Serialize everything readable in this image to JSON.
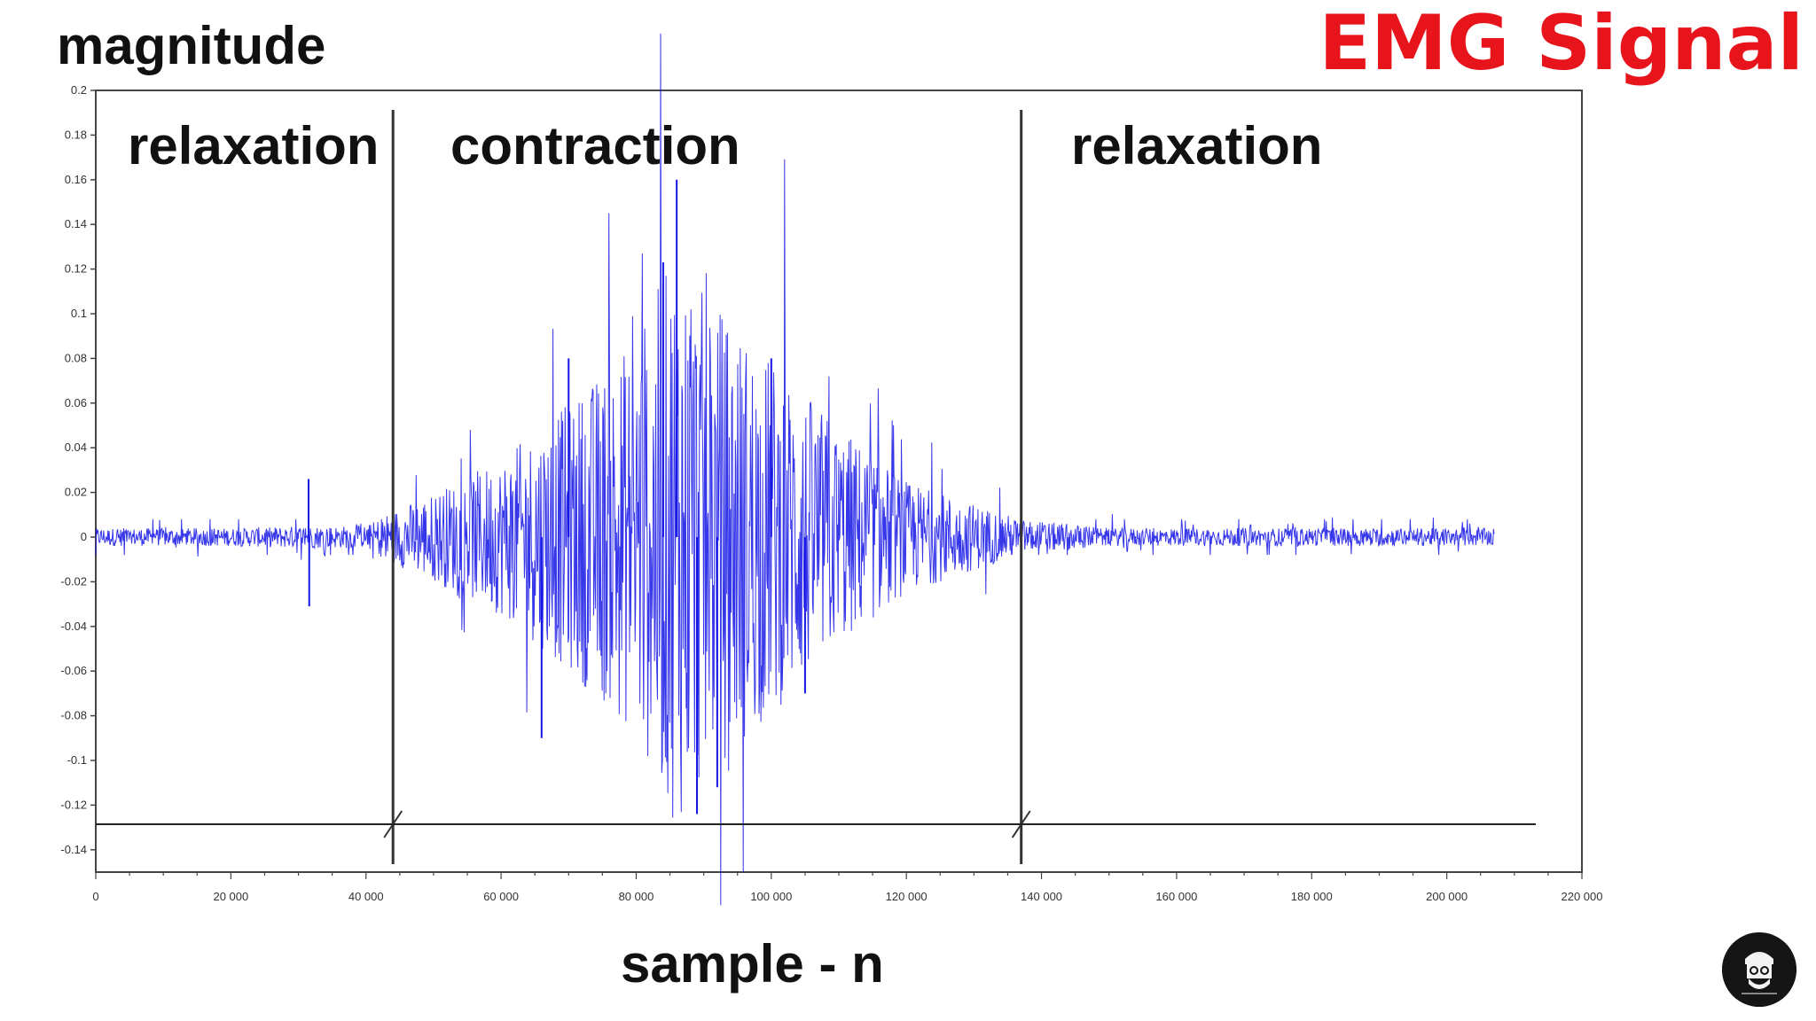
{
  "headline": {
    "text": "EMG Signal",
    "color": "#e8141c"
  },
  "chart_data": {
    "type": "line",
    "ylabel": "magnitude",
    "xlabel": "sample - n",
    "xlim": [
      0,
      220000
    ],
    "ylim": [
      -0.15,
      0.2
    ],
    "x_ticks": [
      {
        "value": 0,
        "label": "0"
      },
      {
        "value": 20000,
        "label": "20 000"
      },
      {
        "value": 40000,
        "label": "40 000"
      },
      {
        "value": 60000,
        "label": "60 000"
      },
      {
        "value": 80000,
        "label": "80 000"
      },
      {
        "value": 100000,
        "label": "100 000"
      },
      {
        "value": 120000,
        "label": "120 000"
      },
      {
        "value": 140000,
        "label": "140 000"
      },
      {
        "value": 160000,
        "label": "160 000"
      },
      {
        "value": 180000,
        "label": "180 000"
      },
      {
        "value": 200000,
        "label": "200 000"
      },
      {
        "value": 220000,
        "label": "220 000"
      }
    ],
    "y_ticks": [
      {
        "value": 0.2,
        "label": "0.2"
      },
      {
        "value": 0.18,
        "label": "0.18"
      },
      {
        "value": 0.16,
        "label": "0.16"
      },
      {
        "value": 0.14,
        "label": "0.14"
      },
      {
        "value": 0.12,
        "label": "0.12"
      },
      {
        "value": 0.1,
        "label": "0.1"
      },
      {
        "value": 0.08,
        "label": "0.08"
      },
      {
        "value": 0.06,
        "label": "0.06"
      },
      {
        "value": 0.04,
        "label": "0.04"
      },
      {
        "value": 0.02,
        "label": "0.02"
      },
      {
        "value": 0,
        "label": "0"
      },
      {
        "value": -0.02,
        "label": "-0.02"
      },
      {
        "value": -0.04,
        "label": "-0.04"
      },
      {
        "value": -0.06,
        "label": "-0.06"
      },
      {
        "value": -0.08,
        "label": "-0.08"
      },
      {
        "value": -0.1,
        "label": "-0.1"
      },
      {
        "value": -0.12,
        "label": "-0.12"
      },
      {
        "value": -0.14,
        "label": "-0.14"
      }
    ],
    "phases": [
      {
        "label": "relaxation",
        "x_start": 0,
        "x_end": 44000
      },
      {
        "label": "contraction",
        "x_start": 44000,
        "x_end": 137000
      },
      {
        "label": "relaxation",
        "x_start": 137000,
        "x_end": 207000
      }
    ],
    "boundaries": [
      44000,
      137000
    ],
    "series": [
      {
        "color": "#1414e6",
        "envelope": [
          {
            "x": 0,
            "amp": 0.004
          },
          {
            "x": 20000,
            "amp": 0.004
          },
          {
            "x": 30000,
            "amp": 0.005
          },
          {
            "x": 40000,
            "amp": 0.005
          },
          {
            "x": 44000,
            "amp": 0.012
          },
          {
            "x": 50000,
            "amp": 0.02
          },
          {
            "x": 60000,
            "amp": 0.035
          },
          {
            "x": 70000,
            "amp": 0.06
          },
          {
            "x": 80000,
            "amp": 0.09
          },
          {
            "x": 86000,
            "amp": 0.13
          },
          {
            "x": 90000,
            "amp": 0.11
          },
          {
            "x": 100000,
            "amp": 0.08
          },
          {
            "x": 110000,
            "amp": 0.05
          },
          {
            "x": 120000,
            "amp": 0.025
          },
          {
            "x": 130000,
            "amp": 0.015
          },
          {
            "x": 137000,
            "amp": 0.008
          },
          {
            "x": 150000,
            "amp": 0.004
          },
          {
            "x": 207000,
            "amp": 0.004
          }
        ],
        "peaks": [
          {
            "x": 31500,
            "y": 0.026
          },
          {
            "x": 31600,
            "y": -0.031
          },
          {
            "x": 86000,
            "y": 0.16
          },
          {
            "x": 84000,
            "y": 0.123
          },
          {
            "x": 89000,
            "y": -0.124
          },
          {
            "x": 92000,
            "y": -0.112
          },
          {
            "x": 70000,
            "y": 0.08
          },
          {
            "x": 66000,
            "y": -0.09
          },
          {
            "x": 100000,
            "y": 0.08
          },
          {
            "x": 105000,
            "y": -0.07
          }
        ]
      }
    ]
  }
}
